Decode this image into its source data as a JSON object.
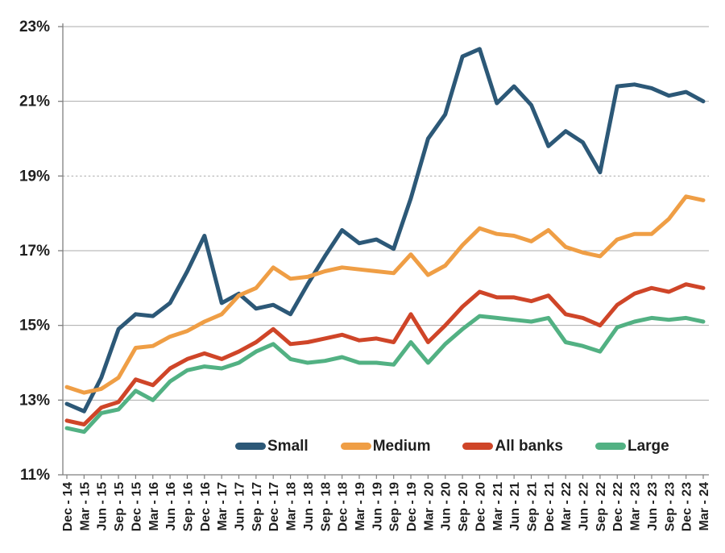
{
  "chart_data": {
    "type": "line",
    "x_labels": [
      "Dec - 14",
      "Mar - 15",
      "Jun - 15",
      "Sep - 15",
      "Dec - 15",
      "Mar - 16",
      "Jun - 16",
      "Sep - 16",
      "Dec - 16",
      "Mar - 17",
      "Jun - 17",
      "Sep - 17",
      "Dec - 17",
      "Mar - 18",
      "Jun - 18",
      "Sep - 18",
      "Dec - 18",
      "Mar - 19",
      "Jun - 19",
      "Sep - 19",
      "Dec - 19",
      "Mar - 20",
      "Jun - 20",
      "Sep - 20",
      "Dec - 20",
      "Mar - 21",
      "Jun - 21",
      "Sep - 21",
      "Dec - 21",
      "Mar - 22",
      "Jun - 22",
      "Sep - 22",
      "Dec - 22",
      "Mar - 23",
      "Jun - 23",
      "Sep - 23",
      "Dec - 23",
      "Mar - 24"
    ],
    "y_axis": {
      "min": 11,
      "max": 23,
      "step": 2,
      "suffix": "%",
      "tick_labels": [
        "11%",
        "13%",
        "15%",
        "17%",
        "19%",
        "21%",
        "23%"
      ],
      "dashed_gridline_value": 19
    },
    "grid": true,
    "legend_position": "bottom-inside",
    "series": [
      {
        "name": "Small",
        "color": "#2C5877",
        "values": [
          12.9,
          12.7,
          13.6,
          14.9,
          15.3,
          15.25,
          15.6,
          16.45,
          17.4,
          15.6,
          15.85,
          15.45,
          15.55,
          15.3,
          16.1,
          16.85,
          17.55,
          17.2,
          17.3,
          17.05,
          18.4,
          20.0,
          20.65,
          22.2,
          22.4,
          20.95,
          21.4,
          20.9,
          19.8,
          20.2,
          19.9,
          19.1,
          21.4,
          21.45,
          21.35,
          21.15,
          21.25,
          21.0
        ]
      },
      {
        "name": "Medium",
        "color": "#EF9E45",
        "values": [
          13.35,
          13.2,
          13.3,
          13.6,
          14.4,
          14.45,
          14.7,
          14.85,
          15.1,
          15.3,
          15.8,
          16.0,
          16.55,
          16.25,
          16.3,
          16.45,
          16.55,
          16.5,
          16.45,
          16.4,
          16.9,
          16.35,
          16.6,
          17.15,
          17.6,
          17.45,
          17.4,
          17.25,
          17.55,
          17.1,
          16.95,
          16.85,
          17.3,
          17.45,
          17.45,
          17.85,
          18.45,
          18.35
        ]
      },
      {
        "name": "All banks",
        "color": "#CF4528",
        "values": [
          12.45,
          12.35,
          12.8,
          12.95,
          13.55,
          13.4,
          13.85,
          14.1,
          14.25,
          14.1,
          14.3,
          14.55,
          14.9,
          14.5,
          14.55,
          14.65,
          14.75,
          14.6,
          14.65,
          14.55,
          15.3,
          14.55,
          15.0,
          15.5,
          15.9,
          15.75,
          15.75,
          15.65,
          15.8,
          15.3,
          15.2,
          15.0,
          15.55,
          15.85,
          16.0,
          15.9,
          16.1,
          16.0
        ]
      },
      {
        "name": "Large",
        "color": "#52B183",
        "values": [
          12.25,
          12.15,
          12.65,
          12.75,
          13.25,
          13.0,
          13.5,
          13.8,
          13.9,
          13.85,
          14.0,
          14.3,
          14.5,
          14.1,
          14.0,
          14.05,
          14.15,
          14.0,
          14.0,
          13.95,
          14.55,
          14.0,
          14.5,
          14.9,
          15.25,
          15.2,
          15.15,
          15.1,
          15.2,
          14.55,
          14.45,
          14.3,
          14.95,
          15.1,
          15.2,
          15.15,
          15.2,
          15.1
        ]
      }
    ],
    "colors": {
      "gridline": "#ABABAB",
      "axis": "#7F7F7F",
      "tick_text": "#1F1F1F"
    }
  }
}
